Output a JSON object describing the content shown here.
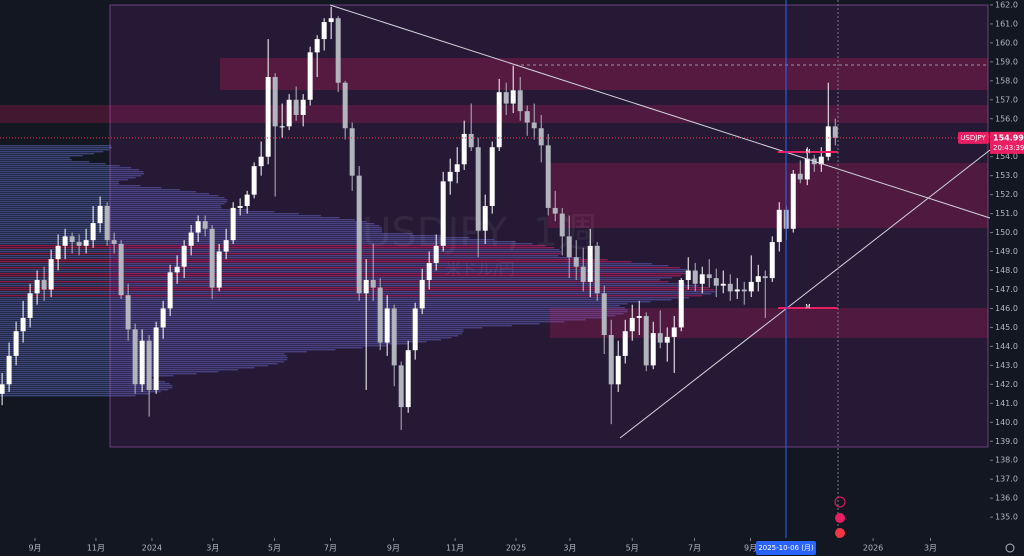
{
  "chart_data": {
    "type": "candlestick",
    "watermark_symbol": "USDJPY, 1週",
    "watermark_name": "米ドル/円",
    "symbol_label": "USDJPY",
    "last_price": 154.994,
    "countdown": "20:43:39",
    "crosshair_date": "2025-10-06 (月)",
    "level_marker": "M",
    "up_color": "#ffffff",
    "down_color": "#b2b5be",
    "candles": [
      [
        141.5,
        142.6,
        140.9,
        142.0
      ],
      [
        142.0,
        144.2,
        141.6,
        143.5
      ],
      [
        143.5,
        145.3,
        143.0,
        144.8
      ],
      [
        144.8,
        146.4,
        144.2,
        145.5
      ],
      [
        145.5,
        147.3,
        145.0,
        146.8
      ],
      [
        146.8,
        148.0,
        146.2,
        147.5
      ],
      [
        147.5,
        148.2,
        146.4,
        147.0
      ],
      [
        147.0,
        149.1,
        146.6,
        148.6
      ],
      [
        148.6,
        149.9,
        148.0,
        149.3
      ],
      [
        149.3,
        150.2,
        148.6,
        149.8
      ],
      [
        149.8,
        150.0,
        148.9,
        149.5
      ],
      [
        149.5,
        149.9,
        148.8,
        149.3
      ],
      [
        149.3,
        150.2,
        148.9,
        149.6
      ],
      [
        149.6,
        151.4,
        149.2,
        150.5
      ],
      [
        150.5,
        151.9,
        150.0,
        151.4
      ],
      [
        151.4,
        151.6,
        149.3,
        149.6
      ],
      [
        149.6,
        150.0,
        148.9,
        149.4
      ],
      [
        149.4,
        149.6,
        146.5,
        146.7
      ],
      [
        146.7,
        147.3,
        144.3,
        144.9
      ],
      [
        144.9,
        145.2,
        141.5,
        142.0
      ],
      [
        142.0,
        144.9,
        141.6,
        144.3
      ],
      [
        144.3,
        144.6,
        140.3,
        141.7
      ],
      [
        141.7,
        145.3,
        141.5,
        145.0
      ],
      [
        145.0,
        146.4,
        144.4,
        146.0
      ],
      [
        146.0,
        148.3,
        145.6,
        147.9
      ],
      [
        147.9,
        148.8,
        147.3,
        148.2
      ],
      [
        148.2,
        149.6,
        147.6,
        149.3
      ],
      [
        149.3,
        150.4,
        148.8,
        150.0
      ],
      [
        150.0,
        150.9,
        149.5,
        150.6
      ],
      [
        150.6,
        150.9,
        149.8,
        150.2
      ],
      [
        150.2,
        150.4,
        146.5,
        147.1
      ],
      [
        147.1,
        149.4,
        146.9,
        149.0
      ],
      [
        149.0,
        150.2,
        148.6,
        149.6
      ],
      [
        149.6,
        151.6,
        149.4,
        151.3
      ],
      [
        151.3,
        151.8,
        150.9,
        151.4
      ],
      [
        151.4,
        152.2,
        151.0,
        152.0
      ],
      [
        152.0,
        153.7,
        151.8,
        153.5
      ],
      [
        153.5,
        154.8,
        153.0,
        154.0
      ],
      [
        154.0,
        160.2,
        153.6,
        158.2
      ],
      [
        158.2,
        158.4,
        151.9,
        155.6
      ],
      [
        155.6,
        156.8,
        155.0,
        155.6
      ],
      [
        155.6,
        157.3,
        155.4,
        157.0
      ],
      [
        157.0,
        157.7,
        155.9,
        156.2
      ],
      [
        156.2,
        157.3,
        155.6,
        157.0
      ],
      [
        157.0,
        159.8,
        156.7,
        159.5
      ],
      [
        159.5,
        160.4,
        158.2,
        160.2
      ],
      [
        160.2,
        161.3,
        159.6,
        161.1
      ],
      [
        161.1,
        161.9,
        160.2,
        161.3
      ],
      [
        161.3,
        161.4,
        157.4,
        157.9
      ],
      [
        157.9,
        158.0,
        154.9,
        155.5
      ],
      [
        155.5,
        155.8,
        152.2,
        153.0
      ],
      [
        153.0,
        153.5,
        146.4,
        146.8
      ],
      [
        146.8,
        148.6,
        141.7,
        147.5
      ],
      [
        147.5,
        149.4,
        146.4,
        147.1
      ],
      [
        147.1,
        147.6,
        143.8,
        144.2
      ],
      [
        144.2,
        146.7,
        143.5,
        146.0
      ],
      [
        146.0,
        146.2,
        141.9,
        143.0
      ],
      [
        143.0,
        143.2,
        139.6,
        140.8
      ],
      [
        140.8,
        144.3,
        140.5,
        143.8
      ],
      [
        143.8,
        146.3,
        143.3,
        146.0
      ],
      [
        146.0,
        148.1,
        145.7,
        147.5
      ],
      [
        147.5,
        149.0,
        147.0,
        148.4
      ],
      [
        148.4,
        149.9,
        148.0,
        149.3
      ],
      [
        149.3,
        153.2,
        149.0,
        152.7
      ],
      [
        152.7,
        153.9,
        152.0,
        153.2
      ],
      [
        153.2,
        154.5,
        152.6,
        153.6
      ],
      [
        153.6,
        155.9,
        153.3,
        155.2
      ],
      [
        155.2,
        156.8,
        154.3,
        154.5
      ],
      [
        154.5,
        155.0,
        148.7,
        150.1
      ],
      [
        150.1,
        152.0,
        149.4,
        151.4
      ],
      [
        151.4,
        154.8,
        151.0,
        154.5
      ],
      [
        154.5,
        158.1,
        154.3,
        157.4
      ],
      [
        157.4,
        157.9,
        156.2,
        156.8
      ],
      [
        156.8,
        158.8,
        156.3,
        157.5
      ],
      [
        157.5,
        158.2,
        155.9,
        156.4
      ],
      [
        156.4,
        156.7,
        155.1,
        155.8
      ],
      [
        155.8,
        156.8,
        154.9,
        155.5
      ],
      [
        155.5,
        156.2,
        153.7,
        154.6
      ],
      [
        154.6,
        155.2,
        150.9,
        151.3
      ],
      [
        151.3,
        152.2,
        150.6,
        151.0
      ],
      [
        151.0,
        151.3,
        148.8,
        149.8
      ],
      [
        149.8,
        150.9,
        147.6,
        148.7
      ],
      [
        148.7,
        149.6,
        147.5,
        148.2
      ],
      [
        148.2,
        149.2,
        146.9,
        147.4
      ],
      [
        147.4,
        150.2,
        146.6,
        149.3
      ],
      [
        149.3,
        149.5,
        146.4,
        146.8
      ],
      [
        146.8,
        147.2,
        143.6,
        144.6
      ],
      [
        144.6,
        145.4,
        139.9,
        142.0
      ],
      [
        142.0,
        144.3,
        141.6,
        143.5
      ],
      [
        143.5,
        145.4,
        143.1,
        144.8
      ],
      [
        144.8,
        146.2,
        144.3,
        145.5
      ],
      [
        145.5,
        146.4,
        144.6,
        145.6
      ],
      [
        145.6,
        145.8,
        142.7,
        143.0
      ],
      [
        143.0,
        145.3,
        142.8,
        144.7
      ],
      [
        144.7,
        145.9,
        143.9,
        144.2
      ],
      [
        144.2,
        145.0,
        143.2,
        144.5
      ],
      [
        144.5,
        145.6,
        142.6,
        145.0
      ],
      [
        145.0,
        147.6,
        144.8,
        147.5
      ],
      [
        147.5,
        148.7,
        147.0,
        148.0
      ],
      [
        148.0,
        148.4,
        146.9,
        147.3
      ],
      [
        147.3,
        148.2,
        146.8,
        147.8
      ],
      [
        147.8,
        148.6,
        147.1,
        147.6
      ],
      [
        147.6,
        148.1,
        146.6,
        147.2
      ],
      [
        147.2,
        148.0,
        146.8,
        147.3
      ],
      [
        147.3,
        147.8,
        146.4,
        146.9
      ],
      [
        146.9,
        147.6,
        146.5,
        147.0
      ],
      [
        147.0,
        147.4,
        146.2,
        146.9
      ],
      [
        146.9,
        148.8,
        146.6,
        147.4
      ],
      [
        147.4,
        148.3,
        146.9,
        147.7
      ],
      [
        147.7,
        148.0,
        145.5,
        147.6
      ],
      [
        147.6,
        149.8,
        147.4,
        149.5
      ],
      [
        149.5,
        151.6,
        149.0,
        151.2
      ],
      [
        151.2,
        151.4,
        149.6,
        150.2
      ],
      [
        150.2,
        153.3,
        150.0,
        153.1
      ],
      [
        153.1,
        153.8,
        152.6,
        152.8
      ],
      [
        152.8,
        154.5,
        152.5,
        153.9
      ],
      [
        153.9,
        154.1,
        153.2,
        153.6
      ],
      [
        153.6,
        154.5,
        153.2,
        154.0
      ],
      [
        154.0,
        157.9,
        153.8,
        155.6
      ],
      [
        155.6,
        156.0,
        154.6,
        154.994
      ]
    ],
    "xlim": [
      -0.3,
      141.1
    ],
    "xticks": [
      {
        "value": 4.7,
        "label": "9月"
      },
      {
        "value": 13.4,
        "label": "11月"
      },
      {
        "value": 21.4,
        "label": "2024"
      },
      {
        "value": 30.1,
        "label": "3月"
      },
      {
        "value": 38.9,
        "label": "5月"
      },
      {
        "value": 46.9,
        "label": "7月"
      },
      {
        "value": 55.9,
        "label": "9月"
      },
      {
        "value": 64.7,
        "label": "11月"
      },
      {
        "value": 73.4,
        "label": "2025"
      },
      {
        "value": 81.1,
        "label": "3月"
      },
      {
        "value": 90,
        "label": "5月"
      },
      {
        "value": 98.9,
        "label": "7月"
      },
      {
        "value": 106.9,
        "label": "9月"
      },
      {
        "value": 124.4,
        "label": "2026"
      },
      {
        "value": 132.6,
        "label": "3月"
      }
    ],
    "ylim": [
      133.9,
      162.26
    ],
    "yticks": [
      {
        "value": 135,
        "label": "135.0"
      },
      {
        "value": 136,
        "label": "136.0"
      },
      {
        "value": 137,
        "label": "137.0"
      },
      {
        "value": 138,
        "label": "138.0"
      },
      {
        "value": 139,
        "label": "139.0"
      },
      {
        "value": 140,
        "label": "140.0"
      },
      {
        "value": 141,
        "label": "141.0"
      },
      {
        "value": 142,
        "label": "142.0"
      },
      {
        "value": 143,
        "label": "143.0"
      },
      {
        "value": 144,
        "label": "144.0"
      },
      {
        "value": 145,
        "label": "145.0"
      },
      {
        "value": 146,
        "label": "146.0"
      },
      {
        "value": 147,
        "label": "147.0"
      },
      {
        "value": 148,
        "label": "148.0"
      },
      {
        "value": 149,
        "label": "149.0"
      },
      {
        "value": 150,
        "label": "150.0"
      },
      {
        "value": 151,
        "label": "151.0"
      },
      {
        "value": 152,
        "label": "152.0"
      },
      {
        "value": 153,
        "label": "153.0"
      },
      {
        "value": 154,
        "label": "154.0"
      },
      {
        "value": 155,
        "label": "155.0"
      },
      {
        "value": 156,
        "label": "156.0"
      },
      {
        "value": 157,
        "label": "157.0"
      },
      {
        "value": 158,
        "label": "158.0"
      },
      {
        "value": 159,
        "label": "159.0"
      },
      {
        "value": 160,
        "label": "160.0"
      },
      {
        "value": 161,
        "label": "161.0"
      },
      {
        "value": 162,
        "label": "162.0"
      }
    ]
  }
}
